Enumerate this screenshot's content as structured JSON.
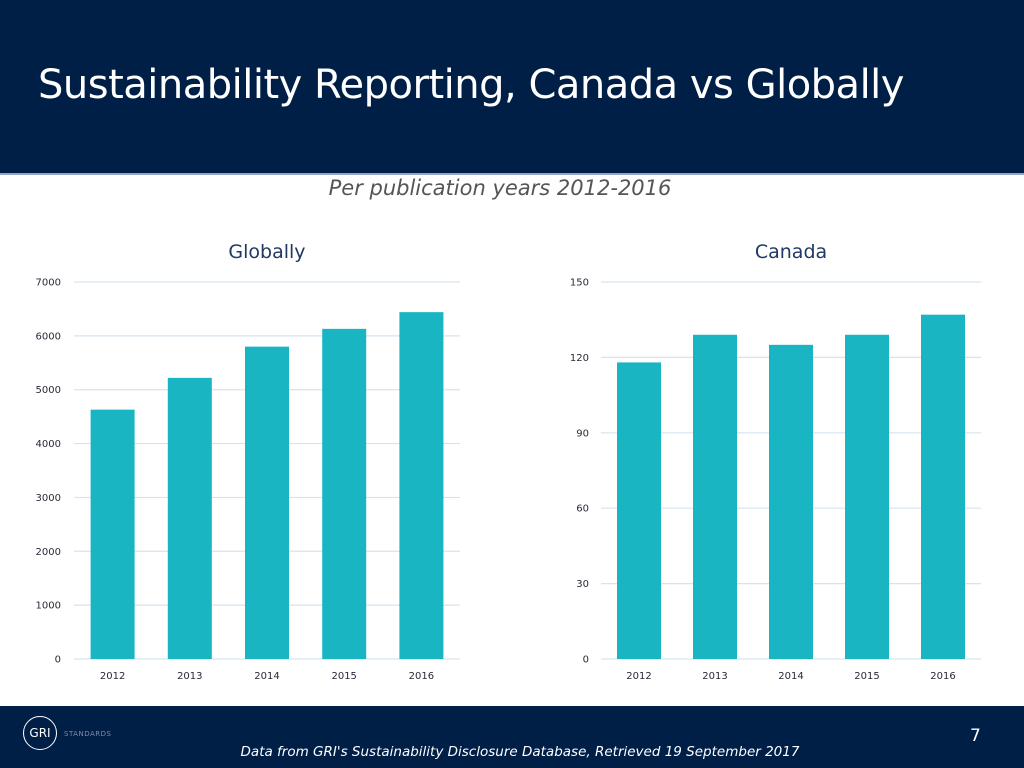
{
  "header": {
    "title": "Sustainability Reporting, Canada vs Globally"
  },
  "subtitle": "Per publication years 2012-2016",
  "footer": {
    "logo_mark": "GRI",
    "logo_text": "STANDARDS",
    "note": "Data from GRI's Sustainability Disclosure Database, Retrieved 19 September 2017",
    "page_number": "7"
  },
  "colors": {
    "header_bg": "#001f47",
    "bar": "#1ab5c3",
    "gridline": "#d6e4f0"
  },
  "chart_data": [
    {
      "type": "bar",
      "title": "Globally",
      "categories": [
        "2012",
        "2013",
        "2014",
        "2015",
        "2016"
      ],
      "values": [
        4630,
        5220,
        5800,
        6130,
        6440
      ],
      "xlabel": "",
      "ylabel": "",
      "ylim": [
        0,
        7000
      ],
      "yticks": [
        0,
        1000,
        2000,
        3000,
        4000,
        5000,
        6000,
        7000
      ],
      "grid": true,
      "legend": "none"
    },
    {
      "type": "bar",
      "title": "Canada",
      "categories": [
        "2012",
        "2013",
        "2014",
        "2015",
        "2016"
      ],
      "values": [
        118,
        129,
        125,
        129,
        137
      ],
      "xlabel": "",
      "ylabel": "",
      "ylim": [
        0,
        150
      ],
      "yticks": [
        0,
        30,
        60,
        90,
        120,
        150
      ],
      "grid": true,
      "legend": "none"
    }
  ]
}
